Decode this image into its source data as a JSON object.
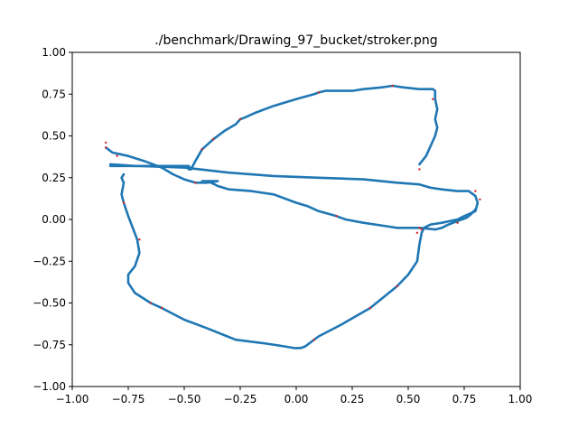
{
  "chart_data": {
    "type": "line",
    "title": "./benchmark/Drawing_97_bucket/stroker.png",
    "xlabel": "",
    "ylabel": "",
    "xlim": [
      -1.0,
      1.0
    ],
    "ylim": [
      -1.0,
      1.0
    ],
    "x_ticks": [
      -1.0,
      -0.75,
      -0.5,
      -0.25,
      0.0,
      0.25,
      0.5,
      0.75,
      1.0
    ],
    "y_ticks": [
      -1.0,
      -0.75,
      -0.5,
      -0.25,
      0.0,
      0.25,
      0.5,
      0.75,
      1.0
    ],
    "x_tick_labels": [
      "−1.00",
      "−0.75",
      "−0.50",
      "−0.25",
      "0.00",
      "0.25",
      "0.50",
      "0.75",
      "1.00"
    ],
    "y_tick_labels": [
      "−1.00",
      "−0.75",
      "−0.50",
      "−0.25",
      "0.00",
      "0.25",
      "0.50",
      "0.75",
      "1.00"
    ],
    "grid": false,
    "legend": "none",
    "colors": {
      "stroke": "#1f77b4",
      "markers": "#d62728",
      "axes": "#000000"
    },
    "series": [
      {
        "values": [
          [
            0.55,
            0.33
          ],
          [
            0.58,
            0.38
          ],
          [
            0.6,
            0.44
          ],
          [
            0.62,
            0.5
          ],
          [
            0.63,
            0.55
          ],
          [
            0.62,
            0.6
          ],
          [
            0.63,
            0.66
          ],
          [
            0.62,
            0.72
          ],
          [
            0.62,
            0.77
          ],
          [
            0.61,
            0.78
          ],
          [
            0.55,
            0.78
          ],
          [
            0.48,
            0.79
          ],
          [
            0.43,
            0.8
          ],
          [
            0.38,
            0.79
          ],
          [
            0.3,
            0.78
          ],
          [
            0.25,
            0.77
          ],
          [
            0.15,
            0.77
          ],
          [
            0.13,
            0.77
          ],
          [
            0.1,
            0.76
          ],
          [
            0.08,
            0.75
          ],
          [
            0.0,
            0.72
          ],
          [
            -0.1,
            0.68
          ],
          [
            -0.18,
            0.64
          ],
          [
            -0.23,
            0.61
          ],
          [
            -0.25,
            0.6
          ],
          [
            -0.27,
            0.57
          ],
          [
            -0.32,
            0.53
          ],
          [
            -0.37,
            0.48
          ],
          [
            -0.42,
            0.42
          ],
          [
            -0.45,
            0.35
          ],
          [
            -0.47,
            0.3
          ],
          [
            -0.48,
            0.3
          ],
          [
            -0.48,
            0.3
          ]
        ]
      },
      {
        "values": [
          [
            -0.47,
            0.3
          ],
          [
            -0.48,
            0.32
          ],
          [
            -0.6,
            0.32
          ],
          [
            -0.72,
            0.32
          ],
          [
            -0.83,
            0.33
          ]
        ]
      },
      {
        "values": [
          [
            -0.83,
            0.32
          ],
          [
            -0.7,
            0.32
          ],
          [
            -0.5,
            0.31
          ],
          [
            -0.3,
            0.28
          ],
          [
            -0.1,
            0.26
          ],
          [
            0.1,
            0.25
          ],
          [
            0.3,
            0.24
          ],
          [
            0.45,
            0.22
          ],
          [
            0.55,
            0.21
          ],
          [
            0.6,
            0.19
          ],
          [
            0.65,
            0.18
          ],
          [
            0.72,
            0.17
          ],
          [
            0.77,
            0.17
          ],
          [
            0.8,
            0.14
          ],
          [
            0.81,
            0.1
          ],
          [
            0.8,
            0.05
          ],
          [
            0.75,
            0.02
          ],
          [
            0.72,
            0.0
          ],
          [
            0.65,
            -0.02
          ],
          [
            0.6,
            -0.03
          ],
          [
            0.57,
            -0.05
          ],
          [
            0.56,
            -0.08
          ],
          [
            0.55,
            -0.15
          ],
          [
            0.54,
            -0.25
          ],
          [
            0.5,
            -0.33
          ],
          [
            0.45,
            -0.4
          ],
          [
            0.33,
            -0.53
          ],
          [
            0.2,
            -0.63
          ],
          [
            0.1,
            -0.7
          ],
          [
            0.04,
            -0.76
          ],
          [
            0.02,
            -0.77
          ],
          [
            -0.01,
            -0.77
          ],
          [
            -0.05,
            -0.76
          ],
          [
            -0.15,
            -0.74
          ],
          [
            -0.27,
            -0.72
          ],
          [
            -0.4,
            -0.65
          ],
          [
            -0.5,
            -0.6
          ],
          [
            -0.6,
            -0.53
          ],
          [
            -0.65,
            -0.5
          ],
          [
            -0.72,
            -0.44
          ],
          [
            -0.75,
            -0.38
          ],
          [
            -0.75,
            -0.33
          ],
          [
            -0.72,
            -0.28
          ],
          [
            -0.7,
            -0.2
          ],
          [
            -0.71,
            -0.12
          ],
          [
            -0.73,
            -0.05
          ],
          [
            -0.75,
            0.02
          ],
          [
            -0.77,
            0.1
          ],
          [
            -0.78,
            0.15
          ],
          [
            -0.77,
            0.22
          ],
          [
            -0.78,
            0.25
          ],
          [
            -0.77,
            0.27
          ]
        ]
      },
      {
        "values": [
          [
            -0.85,
            0.43
          ],
          [
            -0.82,
            0.4
          ],
          [
            -0.75,
            0.38
          ],
          [
            -0.68,
            0.35
          ],
          [
            -0.6,
            0.31
          ],
          [
            -0.55,
            0.27
          ],
          [
            -0.5,
            0.24
          ],
          [
            -0.45,
            0.22
          ],
          [
            -0.4,
            0.22
          ],
          [
            -0.35,
            0.23
          ],
          [
            -0.35,
            0.23
          ],
          [
            -0.42,
            0.23
          ],
          [
            -0.38,
            0.22
          ],
          [
            -0.35,
            0.2
          ],
          [
            -0.3,
            0.18
          ],
          [
            -0.2,
            0.17
          ],
          [
            -0.1,
            0.15
          ],
          [
            0.0,
            0.1
          ],
          [
            0.05,
            0.08
          ],
          [
            0.1,
            0.05
          ],
          [
            0.18,
            0.02
          ],
          [
            0.22,
            0.0
          ],
          [
            0.3,
            -0.02
          ],
          [
            0.4,
            -0.04
          ],
          [
            0.45,
            -0.05
          ],
          [
            0.55,
            -0.05
          ],
          [
            0.62,
            -0.06
          ],
          [
            0.65,
            -0.05
          ],
          [
            0.68,
            -0.03
          ],
          [
            0.72,
            -0.01
          ],
          [
            0.76,
            0.01
          ],
          [
            0.78,
            0.03
          ],
          [
            0.8,
            0.06
          ]
        ]
      }
    ],
    "markers": [
      [
        0.55,
        0.3
      ],
      [
        0.61,
        0.72
      ],
      [
        0.43,
        0.8
      ],
      [
        0.1,
        0.76
      ],
      [
        -0.25,
        0.6
      ],
      [
        -0.37,
        0.48
      ],
      [
        -0.42,
        0.42
      ],
      [
        -0.45,
        0.22
      ],
      [
        -0.85,
        0.46
      ],
      [
        -0.85,
        0.43
      ],
      [
        -0.8,
        0.38
      ],
      [
        -0.77,
        0.1
      ],
      [
        -0.7,
        -0.12
      ],
      [
        -0.65,
        -0.5
      ],
      [
        -0.6,
        -0.53
      ],
      [
        0.08,
        -0.72
      ],
      [
        0.33,
        -0.53
      ],
      [
        0.45,
        -0.4
      ],
      [
        0.55,
        -0.05
      ],
      [
        0.54,
        -0.08
      ],
      [
        0.18,
        0.02
      ],
      [
        0.72,
        -0.02
      ],
      [
        0.8,
        0.17
      ],
      [
        0.82,
        0.12
      ],
      [
        0.56,
        -0.06
      ]
    ]
  }
}
